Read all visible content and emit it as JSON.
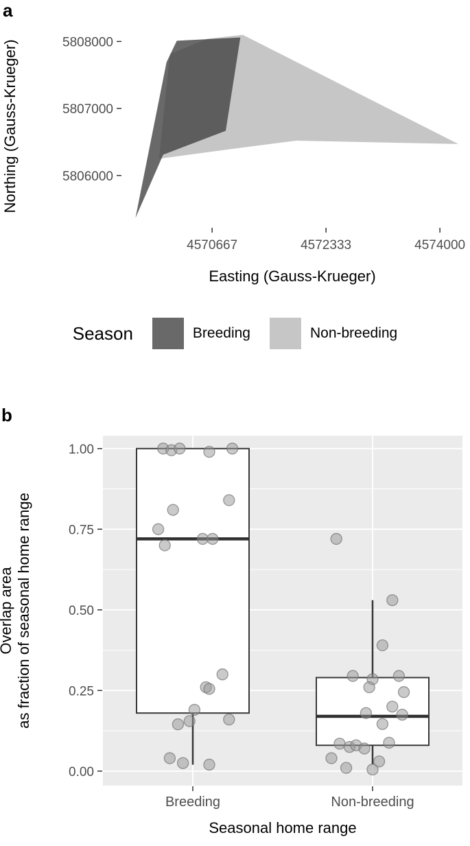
{
  "figure": {
    "panel_a_label": "a",
    "panel_b_label": "b"
  },
  "chart_data": [
    {
      "id": "seasonal-home-range-map",
      "type": "area",
      "panel": "a",
      "xlabel": "Easting (Gauss-Krueger)",
      "ylabel": "Northing (Gauss-Krueger)",
      "xlim": [
        4569350,
        4574330
      ],
      "ylim": [
        5805230,
        5808250
      ],
      "xticks": [
        4570667,
        4572333,
        4574000
      ],
      "yticks": [
        5806000,
        5807000,
        5808000
      ],
      "grid": false,
      "polygons": [
        {
          "name": "Non-breeding",
          "color": "#c6c6c6",
          "opacity": 1,
          "points": [
            [
              4570050,
              5807810
            ],
            [
              4570600,
              5808040
            ],
            [
              4571115,
              5808100
            ],
            [
              4574270,
              5806470
            ],
            [
              4571900,
              5806520
            ],
            [
              4570870,
              5806385
            ],
            [
              4569890,
              5806250
            ]
          ]
        },
        {
          "name": "Breeding",
          "color": "#3f3f3f",
          "opacity": 0.78,
          "points": [
            [
              4569545,
              5805365
            ],
            [
              4570000,
              5807690
            ],
            [
              4570150,
              5808010
            ],
            [
              4571080,
              5808060
            ],
            [
              4570866,
              5806667
            ],
            [
              4569950,
              5806310
            ]
          ]
        }
      ],
      "legend": {
        "title": "Season",
        "entries": [
          {
            "label": "Breeding",
            "color": "#696969"
          },
          {
            "label": "Non-breeding",
            "color": "#c6c6c6"
          }
        ]
      }
    },
    {
      "id": "overlap-fraction-boxplot",
      "type": "boxplot",
      "panel": "b",
      "xlabel": "Seasonal home range",
      "ylabel_lines": [
        "Overlap area",
        "as fraction of seasonal home range"
      ],
      "categories": [
        "Breeding",
        "Non-breeding"
      ],
      "ylim": [
        -0.045,
        1.04
      ],
      "yticks": [
        0,
        0.25,
        0.5,
        0.75,
        1
      ],
      "ytick_labels": [
        "0.00",
        "0.25",
        "0.50",
        "0.75",
        "1.00"
      ],
      "grid_minor": [
        0.125,
        0.375,
        0.625,
        0.875
      ],
      "grid": true,
      "panel_background": "#ebebeb",
      "boxes": [
        {
          "category": "Breeding",
          "q1": 0.18,
          "median": 0.72,
          "q3": 1.0,
          "whisker_low": 0.02,
          "whisker_high": 1.0
        },
        {
          "category": "Non-breeding",
          "q1": 0.08,
          "median": 0.17,
          "q3": 0.29,
          "whisker_low": 0.02,
          "whisker_high": 0.53
        }
      ],
      "jitter_points": [
        {
          "category": "Breeding",
          "points": [
            [
              -0.18,
              1.0
            ],
            [
              -0.13,
              0.995
            ],
            [
              -0.08,
              1.0
            ],
            [
              0.1,
              0.99
            ],
            [
              0.24,
              1.0
            ],
            [
              0.22,
              0.84
            ],
            [
              -0.12,
              0.81
            ],
            [
              -0.21,
              0.75
            ],
            [
              0.06,
              0.72
            ],
            [
              0.12,
              0.72
            ],
            [
              -0.17,
              0.7
            ],
            [
              0.18,
              0.3
            ],
            [
              0.08,
              0.26
            ],
            [
              0.1,
              0.255
            ],
            [
              0.01,
              0.19
            ],
            [
              0.22,
              0.16
            ],
            [
              -0.02,
              0.155
            ],
            [
              -0.09,
              0.145
            ],
            [
              -0.14,
              0.04
            ],
            [
              -0.06,
              0.025
            ],
            [
              0.1,
              0.02
            ]
          ]
        },
        {
          "category": "Non-breeding",
          "points": [
            [
              -0.22,
              0.72
            ],
            [
              0.12,
              0.53
            ],
            [
              0.06,
              0.39
            ],
            [
              -0.12,
              0.295
            ],
            [
              0.0,
              0.285
            ],
            [
              0.16,
              0.295
            ],
            [
              -0.02,
              0.26
            ],
            [
              0.19,
              0.245
            ],
            [
              0.12,
              0.2
            ],
            [
              -0.04,
              0.18
            ],
            [
              0.18,
              0.175
            ],
            [
              0.06,
              0.146
            ],
            [
              -0.2,
              0.085
            ],
            [
              -0.14,
              0.075
            ],
            [
              -0.1,
              0.08
            ],
            [
              -0.05,
              0.07
            ],
            [
              0.1,
              0.088
            ],
            [
              -0.25,
              0.04
            ],
            [
              0.04,
              0.03
            ],
            [
              -0.16,
              0.01
            ],
            [
              0.0,
              0.005
            ]
          ]
        }
      ],
      "point_style": {
        "fill": "#969696",
        "opacity": 0.5,
        "stroke": "#707070",
        "radius": 8
      }
    }
  ]
}
